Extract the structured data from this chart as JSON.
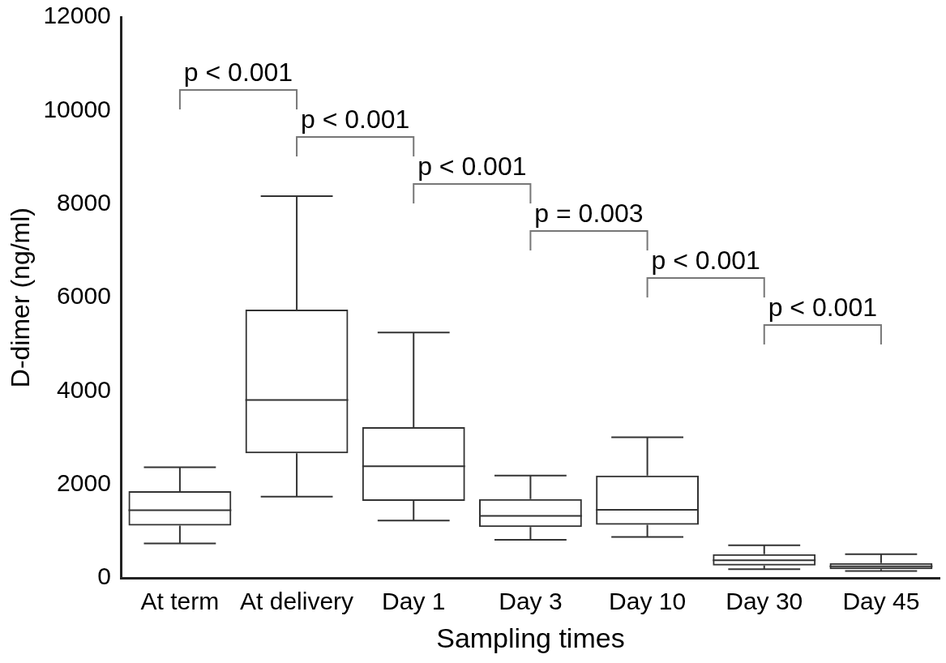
{
  "chart_data": {
    "type": "box",
    "xlabel": "Sampling times",
    "ylabel": "D-dimer (ng/ml)",
    "categories": [
      "At term",
      "At delivery",
      "Day 1",
      "Day 3",
      "Day 10",
      "Day 30",
      "Day 45"
    ],
    "boxes": [
      {
        "low": 740,
        "q1": 1120,
        "median": 1450,
        "q3": 1860,
        "high": 2370
      },
      {
        "low": 1740,
        "q1": 2670,
        "median": 3810,
        "q3": 5740,
        "high": 8170
      },
      {
        "low": 1230,
        "q1": 1650,
        "median": 2390,
        "q3": 3230,
        "high": 5250
      },
      {
        "low": 820,
        "q1": 1090,
        "median": 1330,
        "q3": 1690,
        "high": 2190
      },
      {
        "low": 880,
        "q1": 1140,
        "median": 1460,
        "q3": 2190,
        "high": 3010
      },
      {
        "low": 190,
        "q1": 270,
        "median": 380,
        "q3": 510,
        "high": 700
      },
      {
        "low": 150,
        "q1": 190,
        "median": 250,
        "q3": 320,
        "high": 510
      }
    ],
    "color": "#333333",
    "ylim": [
      0,
      12000
    ],
    "yticks": [
      0,
      2000,
      4000,
      6000,
      8000,
      10000,
      12000
    ],
    "grid": false,
    "annotations": [
      "p < 0.001",
      "p < 0.001",
      "p < 0.001",
      "p = 0.003",
      "p < 0.001",
      "p < 0.001"
    ]
  }
}
